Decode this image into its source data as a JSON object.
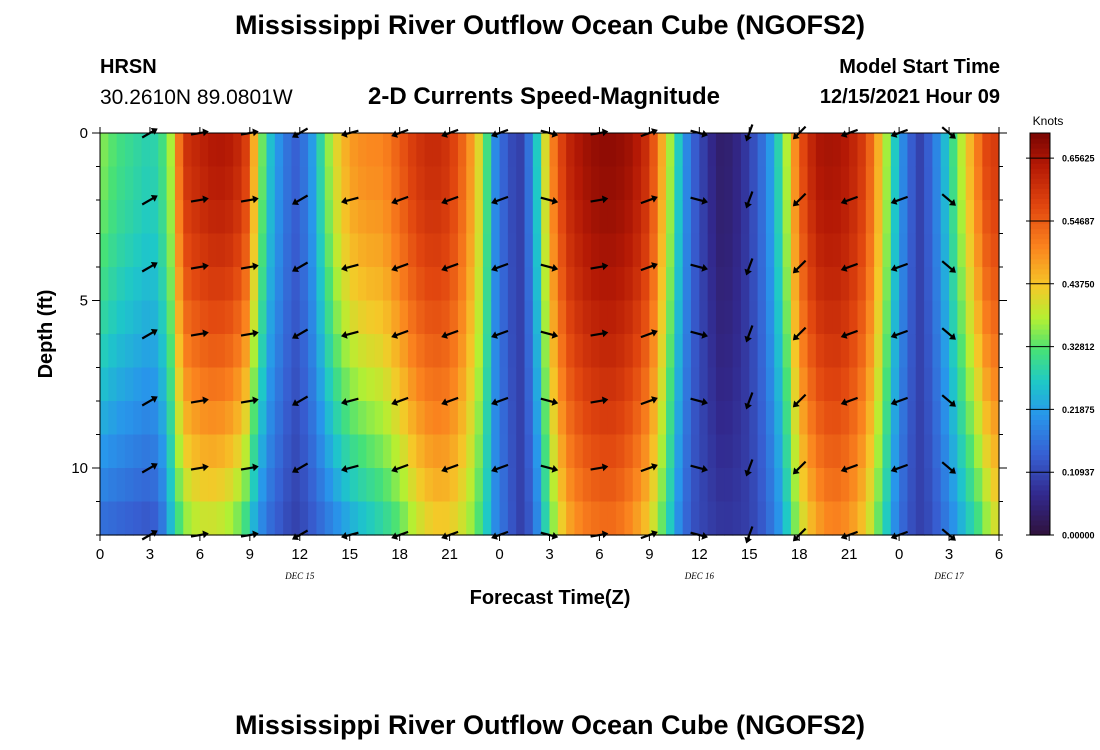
{
  "header": {
    "title": "Mississippi River Outflow Ocean Cube (NGOFS2)",
    "station": "HRSN",
    "coordinates": "30.2610N  89.0801W",
    "subtitle": "2-D Currents Speed-Magnitude",
    "model_start_label": "Model Start Time",
    "model_start_value": "12/15/2021 Hour 09"
  },
  "footer": {
    "repeat_title": "Mississippi River Outflow Ocean Cube (NGOFS2)"
  },
  "chart_data": {
    "type": "heatmap",
    "title": "2-D Currents Speed-Magnitude",
    "xlabel": "Forecast Time(Z)",
    "ylabel": "Depth (ft)",
    "x_hours_from_start": [
      0,
      54
    ],
    "x_tick_labels": [
      "0",
      "3",
      "6",
      "9",
      "12",
      "15",
      "18",
      "21",
      "0",
      "3",
      "6",
      "9",
      "12",
      "15",
      "18",
      "21",
      "0",
      "3",
      "6"
    ],
    "date_labels": [
      {
        "hour": 12,
        "label": "DEC 15"
      },
      {
        "hour": 36,
        "label": "DEC 16"
      },
      {
        "hour": 51,
        "label": "DEC 17"
      }
    ],
    "ylim": [
      0,
      12
    ],
    "y_ticks": [
      0,
      5,
      10
    ],
    "colorbar": {
      "unit": "Knots",
      "range": [
        0,
        0.7
      ],
      "tick_values": [
        0.0,
        0.10937,
        0.21875,
        0.32812,
        0.4375,
        0.54687,
        0.65625
      ],
      "tick_labels": [
        "0.00000",
        "0.10937",
        "0.21875",
        "0.32812",
        "0.43750",
        "0.54687",
        "0.65625"
      ]
    },
    "speed_profile": {
      "hours": [
        0,
        1,
        2,
        3,
        3.6,
        4.3,
        5,
        6,
        7,
        8,
        8.7,
        9.3,
        10,
        11,
        11.7,
        12.5,
        13.3,
        14,
        15,
        16,
        17,
        18,
        19,
        20,
        21,
        22,
        23,
        23.7,
        24.5,
        25.3,
        26,
        27,
        28,
        29,
        30,
        31,
        32,
        33,
        34,
        35,
        35.7,
        36.5,
        37.3,
        38,
        39,
        40,
        41,
        42,
        43,
        44,
        45,
        46,
        47,
        48,
        48.7,
        49.3,
        50,
        51,
        52,
        53,
        53.5,
        54
      ],
      "surface_knots": [
        0.36,
        0.32,
        0.3,
        0.28,
        0.3,
        0.38,
        0.6,
        0.63,
        0.65,
        0.64,
        0.6,
        0.45,
        0.28,
        0.18,
        0.14,
        0.18,
        0.3,
        0.4,
        0.48,
        0.5,
        0.5,
        0.55,
        0.6,
        0.62,
        0.6,
        0.52,
        0.38,
        0.2,
        0.12,
        0.1,
        0.2,
        0.48,
        0.62,
        0.66,
        0.68,
        0.68,
        0.66,
        0.6,
        0.42,
        0.22,
        0.14,
        0.08,
        0.04,
        0.05,
        0.1,
        0.18,
        0.32,
        0.55,
        0.65,
        0.66,
        0.64,
        0.58,
        0.42,
        0.22,
        0.14,
        0.1,
        0.16,
        0.28,
        0.42,
        0.55,
        0.6,
        0.58
      ],
      "bottom_knots": [
        0.15,
        0.14,
        0.13,
        0.12,
        0.14,
        0.25,
        0.34,
        0.38,
        0.38,
        0.35,
        0.3,
        0.22,
        0.16,
        0.12,
        0.1,
        0.12,
        0.15,
        0.18,
        0.22,
        0.25,
        0.28,
        0.32,
        0.38,
        0.42,
        0.42,
        0.38,
        0.3,
        0.2,
        0.14,
        0.1,
        0.14,
        0.32,
        0.45,
        0.5,
        0.52,
        0.52,
        0.48,
        0.42,
        0.3,
        0.16,
        0.12,
        0.1,
        0.09,
        0.09,
        0.1,
        0.14,
        0.22,
        0.38,
        0.46,
        0.5,
        0.48,
        0.42,
        0.3,
        0.16,
        0.12,
        0.1,
        0.12,
        0.18,
        0.25,
        0.32,
        0.38,
        0.4
      ]
    },
    "vector_depths_ft": [
      0,
      2,
      4,
      6,
      8,
      10,
      12
    ],
    "vector_columns": [
      {
        "hour": 3,
        "angle_deg": -30
      },
      {
        "hour": 6,
        "angle_deg": -10
      },
      {
        "hour": 9,
        "angle_deg": -10
      },
      {
        "hour": 12,
        "angle_deg": 150
      },
      {
        "hour": 15,
        "angle_deg": 165
      },
      {
        "hour": 18,
        "angle_deg": 160
      },
      {
        "hour": 21,
        "angle_deg": 160
      },
      {
        "hour": 24,
        "angle_deg": 160
      },
      {
        "hour": 27,
        "angle_deg": 15
      },
      {
        "hour": 30,
        "angle_deg": -10
      },
      {
        "hour": 33,
        "angle_deg": -20
      },
      {
        "hour": 36,
        "angle_deg": 15
      },
      {
        "hour": 39,
        "angle_deg": 110
      },
      {
        "hour": 42,
        "angle_deg": 135
      },
      {
        "hour": 45,
        "angle_deg": 160
      },
      {
        "hour": 48,
        "angle_deg": 160
      },
      {
        "hour": 51,
        "angle_deg": 40
      }
    ]
  }
}
